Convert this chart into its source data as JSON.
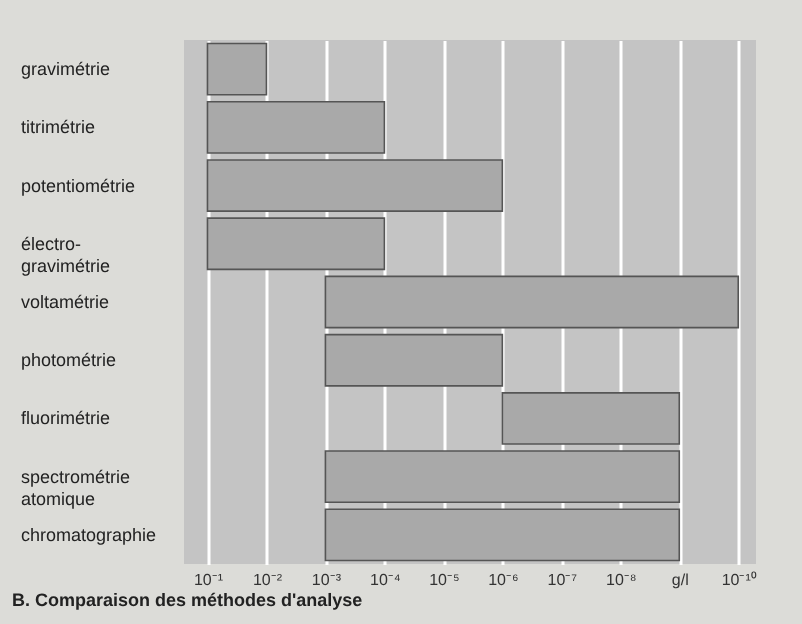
{
  "chart_data": {
    "type": "bar",
    "orientation": "horizontal",
    "log": "x",
    "grid": "x",
    "annotations": [
      "B. Comparaison des méthodes d'analyse"
    ],
    "categories": [
      "gravimétrie",
      "titrimétrie",
      "potentiométrie",
      "électro-\ngravimétrie",
      "voltamétrie",
      "photométrie",
      "fluorimétrie",
      "spectrométrie\natomique",
      "chromatographie"
    ],
    "base": [
      0.01,
      0.0001,
      1e-06,
      0.0001,
      1e-10,
      1e-06,
      1e-09,
      1e-09,
      1e-09
    ],
    "values": [
      0.09,
      0.0999,
      0.099999,
      0.0999,
      0.0009999999,
      0.000999,
      9.99e-07,
      0.000999999,
      0.000999999
    ],
    "color": "#a9a9a9",
    "xlim": [
      0.25,
      5e-11
    ],
    "xticks": [
      {
        "value": 0.1,
        "label": "10⁻¹"
      },
      {
        "value": 0.01,
        "label": "10⁻²"
      },
      {
        "value": 0.001,
        "label": "10⁻³"
      },
      {
        "value": 0.0001,
        "label": "10⁻⁴"
      },
      {
        "value": 1e-05,
        "label": "10⁻⁵"
      },
      {
        "value": 1e-06,
        "label": "10⁻⁶"
      },
      {
        "value": 1e-07,
        "label": "10⁻⁷"
      },
      {
        "value": 1e-08,
        "label": "10⁻⁸"
      },
      {
        "value": 1e-09,
        "label": "g/l"
      },
      {
        "value": 1e-10,
        "label": "10⁻¹⁰"
      }
    ]
  }
}
